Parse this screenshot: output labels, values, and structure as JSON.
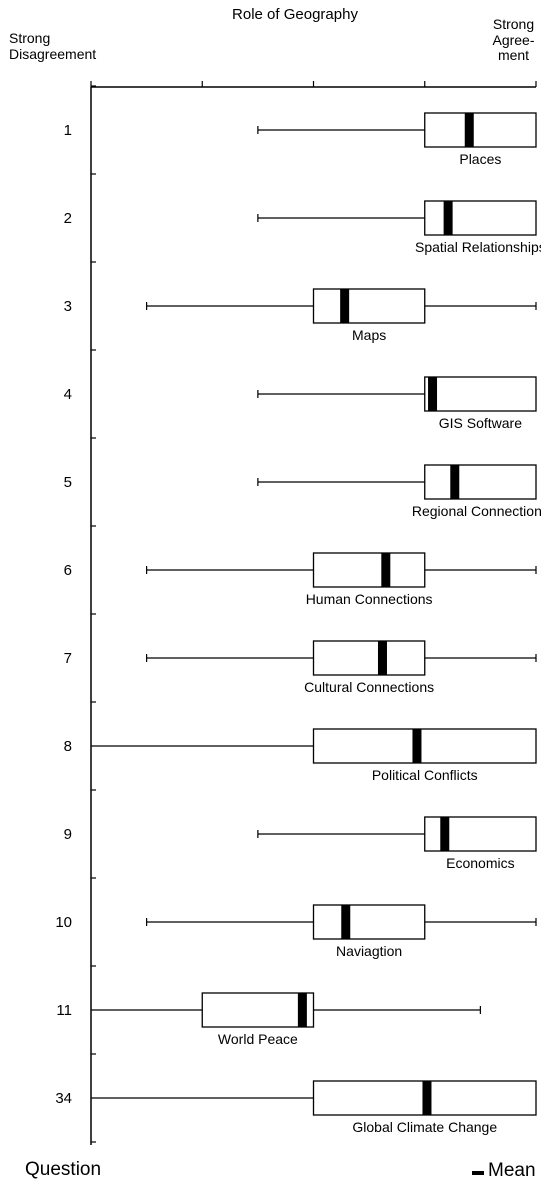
{
  "chart_data": {
    "type": "boxplot",
    "title": "Role of Geography",
    "scale_left_label": "Strong\nDisagreement",
    "scale_right_label": "Strong\nAgree-\nment",
    "ylabel": "Question",
    "xlim": [
      1,
      5
    ],
    "legend": {
      "label": "Mean",
      "placement": "bottom-right"
    },
    "items": [
      {
        "question": "1",
        "label": "Places",
        "min": 2.5,
        "q1": 4,
        "q3": 5,
        "max": 5,
        "mean": 4.4
      },
      {
        "question": "2",
        "label": "Spatial Relationships",
        "min": 2.5,
        "q1": 4,
        "q3": 5,
        "max": 5,
        "mean": 4.21
      },
      {
        "question": "3",
        "label": "Maps",
        "min": 1.5,
        "q1": 3,
        "q3": 4,
        "max": 5,
        "mean": 3.28
      },
      {
        "question": "4",
        "label": "GIS Software",
        "min": 2.5,
        "q1": 4,
        "q3": 5,
        "max": 5,
        "mean": 4.07
      },
      {
        "question": "5",
        "label": "Regional Connections",
        "min": 2.5,
        "q1": 4,
        "q3": 5,
        "max": 5,
        "mean": 4.27
      },
      {
        "question": "6",
        "label": "Human Connections",
        "min": 1.5,
        "q1": 3,
        "q3": 4,
        "max": 5,
        "mean": 3.65
      },
      {
        "question": "7",
        "label": "Cultural Connections",
        "min": 1.5,
        "q1": 3,
        "q3": 4,
        "max": 5,
        "mean": 3.62
      },
      {
        "question": "8",
        "label": "Political Conflicts",
        "min": 1,
        "q1": 3,
        "q3": 5,
        "max": 5,
        "mean": 3.93
      },
      {
        "question": "9",
        "label": "Economics",
        "min": 2.5,
        "q1": 4,
        "q3": 5,
        "max": 5,
        "mean": 4.18
      },
      {
        "question": "10",
        "label": "Naviagtion",
        "min": 1.5,
        "q1": 3,
        "q3": 4,
        "max": 5,
        "mean": 3.29
      },
      {
        "question": "11",
        "label": "World Peace",
        "min": 1,
        "q1": 2,
        "q3": 3,
        "max": 4.5,
        "mean": 2.9
      },
      {
        "question": "34",
        "label": "Global Climate Change",
        "min": 1,
        "q1": 3,
        "q3": 5,
        "max": 5,
        "mean": 4.02
      }
    ]
  }
}
